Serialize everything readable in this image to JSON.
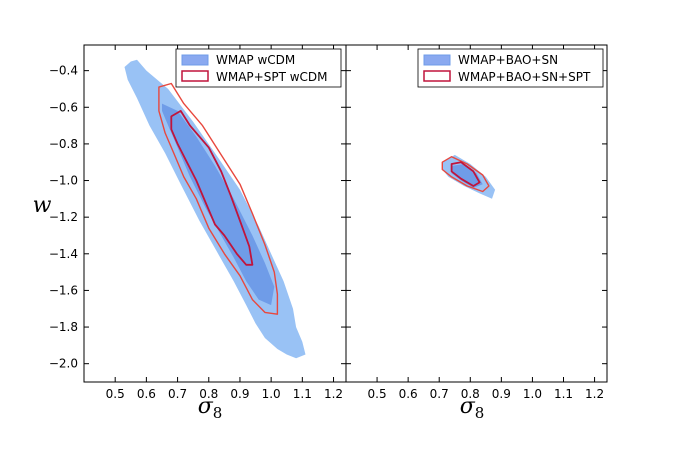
{
  "chart_data": {
    "type": "contour",
    "ylabel": "w",
    "colors": {
      "wmap_outer": "#99c2f5",
      "wmap_inner": "#6f9ce8",
      "spt_outer": "#e8483e",
      "spt_inner": "#c0143c"
    },
    "panels": [
      {
        "xlabel": "σ8",
        "xlim": [
          0.4,
          1.24
        ],
        "ylim": [
          -2.1,
          -0.26
        ],
        "xticks": [
          "0.5",
          "0.6",
          "0.7",
          "0.8",
          "0.9",
          "1.0",
          "1.1",
          "1.2"
        ],
        "yticks": [
          "−0.4",
          "−0.6",
          "−0.8",
          "−1.0",
          "−1.2",
          "−1.4",
          "−1.6",
          "−1.8",
          "−2.0"
        ],
        "legend": [
          {
            "label": "WMAP wCDM",
            "style": "filled"
          },
          {
            "label": "WMAP+SPT wCDM",
            "style": "outline"
          }
        ],
        "legend_position": "top-right",
        "contours": {
          "wmap_outer": [
            [
              0.55,
              -0.35
            ],
            [
              0.57,
              -0.34
            ],
            [
              0.6,
              -0.4
            ],
            [
              0.67,
              -0.5
            ],
            [
              0.75,
              -0.68
            ],
            [
              0.82,
              -0.85
            ],
            [
              0.9,
              -1.05
            ],
            [
              0.96,
              -1.25
            ],
            [
              1.0,
              -1.4
            ],
            [
              1.04,
              -1.55
            ],
            [
              1.07,
              -1.7
            ],
            [
              1.08,
              -1.8
            ],
            [
              1.1,
              -1.88
            ],
            [
              1.11,
              -1.95
            ],
            [
              1.08,
              -1.97
            ],
            [
              1.05,
              -1.95
            ],
            [
              1.02,
              -1.92
            ],
            [
              0.98,
              -1.86
            ],
            [
              0.95,
              -1.78
            ],
            [
              0.92,
              -1.68
            ],
            [
              0.88,
              -1.55
            ],
            [
              0.83,
              -1.4
            ],
            [
              0.77,
              -1.22
            ],
            [
              0.71,
              -1.02
            ],
            [
              0.66,
              -0.85
            ],
            [
              0.61,
              -0.7
            ],
            [
              0.57,
              -0.55
            ],
            [
              0.54,
              -0.45
            ],
            [
              0.53,
              -0.38
            ]
          ],
          "wmap_inner": [
            [
              0.65,
              -0.58
            ],
            [
              0.7,
              -0.62
            ],
            [
              0.76,
              -0.76
            ],
            [
              0.82,
              -0.92
            ],
            [
              0.88,
              -1.1
            ],
            [
              0.94,
              -1.3
            ],
            [
              0.98,
              -1.45
            ],
            [
              1.01,
              -1.58
            ],
            [
              1.0,
              -1.68
            ],
            [
              0.96,
              -1.65
            ],
            [
              0.92,
              -1.55
            ],
            [
              0.88,
              -1.42
            ],
            [
              0.84,
              -1.3
            ],
            [
              0.79,
              -1.15
            ],
            [
              0.74,
              -0.98
            ],
            [
              0.7,
              -0.82
            ],
            [
              0.67,
              -0.7
            ],
            [
              0.65,
              -0.62
            ]
          ],
          "spt_outer": [
            [
              0.64,
              -0.49
            ],
            [
              0.68,
              -0.47
            ],
            [
              0.72,
              -0.58
            ],
            [
              0.78,
              -0.7
            ],
            [
              0.84,
              -0.86
            ],
            [
              0.9,
              -1.02
            ],
            [
              0.94,
              -1.18
            ],
            [
              0.98,
              -1.35
            ],
            [
              1.01,
              -1.5
            ],
            [
              1.02,
              -1.62
            ],
            [
              1.02,
              -1.73
            ],
            [
              0.98,
              -1.72
            ],
            [
              0.94,
              -1.65
            ],
            [
              0.9,
              -1.52
            ],
            [
              0.85,
              -1.4
            ],
            [
              0.8,
              -1.26
            ],
            [
              0.76,
              -1.1
            ],
            [
              0.72,
              -0.98
            ],
            [
              0.69,
              -0.86
            ],
            [
              0.66,
              -0.74
            ],
            [
              0.64,
              -0.62
            ]
          ],
          "spt_inner": [
            [
              0.68,
              -0.65
            ],
            [
              0.71,
              -0.62
            ],
            [
              0.74,
              -0.7
            ],
            [
              0.8,
              -0.82
            ],
            [
              0.84,
              -0.95
            ],
            [
              0.87,
              -1.08
            ],
            [
              0.9,
              -1.22
            ],
            [
              0.93,
              -1.36
            ],
            [
              0.94,
              -1.46
            ],
            [
              0.92,
              -1.46
            ],
            [
              0.89,
              -1.4
            ],
            [
              0.85,
              -1.3
            ],
            [
              0.82,
              -1.24
            ],
            [
              0.79,
              -1.12
            ],
            [
              0.76,
              -1.0
            ],
            [
              0.73,
              -0.9
            ],
            [
              0.7,
              -0.8
            ],
            [
              0.68,
              -0.72
            ]
          ]
        }
      },
      {
        "xlabel": "σ8",
        "xlim": [
          0.4,
          1.24
        ],
        "ylim": [
          -2.1,
          -0.26
        ],
        "xticks": [
          "0.5",
          "0.6",
          "0.7",
          "0.8",
          "0.9",
          "1.0",
          "1.1",
          "1.2"
        ],
        "legend": [
          {
            "label": "WMAP+BAO+SN",
            "style": "filled"
          },
          {
            "label": "WMAP+BAO+SN+SPT",
            "style": "outline"
          }
        ],
        "legend_position": "top-right",
        "contours": {
          "wmap_outer": [
            [
              0.71,
              -0.9
            ],
            [
              0.75,
              -0.86
            ],
            [
              0.8,
              -0.91
            ],
            [
              0.85,
              -0.98
            ],
            [
              0.88,
              -1.05
            ],
            [
              0.87,
              -1.1
            ],
            [
              0.83,
              -1.07
            ],
            [
              0.78,
              -1.03
            ],
            [
              0.73,
              -0.98
            ],
            [
              0.71,
              -0.94
            ]
          ],
          "wmap_inner": [
            [
              0.74,
              -0.92
            ],
            [
              0.78,
              -0.91
            ],
            [
              0.82,
              -0.96
            ],
            [
              0.84,
              -1.02
            ],
            [
              0.81,
              -1.04
            ],
            [
              0.77,
              -1.0
            ],
            [
              0.74,
              -0.96
            ]
          ],
          "spt_outer": [
            [
              0.71,
              -0.9
            ],
            [
              0.74,
              -0.87
            ],
            [
              0.79,
              -0.91
            ],
            [
              0.84,
              -0.97
            ],
            [
              0.86,
              -1.03
            ],
            [
              0.84,
              -1.06
            ],
            [
              0.79,
              -1.03
            ],
            [
              0.74,
              -0.98
            ],
            [
              0.71,
              -0.94
            ]
          ],
          "spt_inner": [
            [
              0.74,
              -0.91
            ],
            [
              0.77,
              -0.9
            ],
            [
              0.81,
              -0.95
            ],
            [
              0.83,
              -1.01
            ],
            [
              0.81,
              -1.03
            ],
            [
              0.77,
              -0.99
            ],
            [
              0.74,
              -0.95
            ]
          ]
        }
      }
    ]
  }
}
